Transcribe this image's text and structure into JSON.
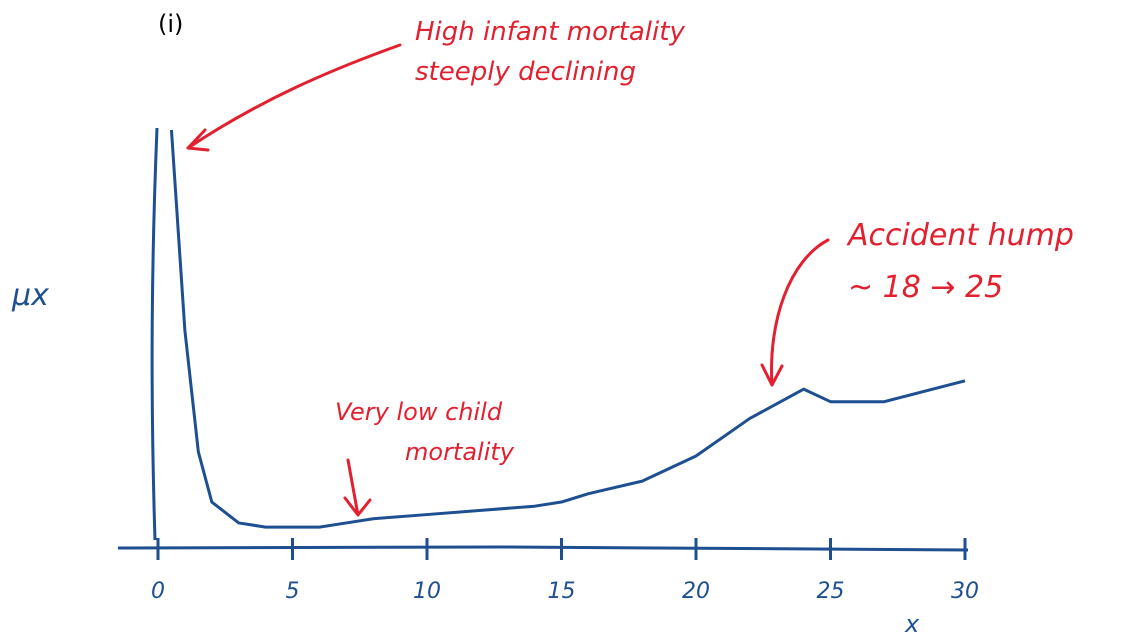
{
  "chart_data": {
    "type": "line",
    "title": "(i)",
    "x_label": "x",
    "y_label": "μx",
    "x": [
      0.5,
      1,
      1.5,
      2,
      3,
      4,
      5,
      6,
      7,
      8,
      10,
      12,
      14,
      15,
      16,
      18,
      20,
      22,
      24,
      25,
      27,
      30
    ],
    "series": [
      {
        "name": "μx",
        "color": "#1d4f91",
        "values": [
          100,
          52,
          23,
          11,
          6,
          5,
          5,
          5,
          6,
          7,
          8,
          9,
          10,
          11,
          13,
          16,
          22,
          31,
          38,
          35,
          35,
          40
        ]
      }
    ],
    "xlim": [
      0,
      30
    ],
    "xticks": [
      0,
      5,
      10,
      15,
      20,
      25,
      30
    ],
    "ylim": [
      0,
      100
    ],
    "annotation_color": "#e3202f",
    "annotations": [
      [
        "High infant mortality",
        "steeply declining"
      ],
      [
        "Accident hump",
        "~ 18 → 25"
      ],
      [
        "Very low child",
        "mortality"
      ]
    ]
  }
}
